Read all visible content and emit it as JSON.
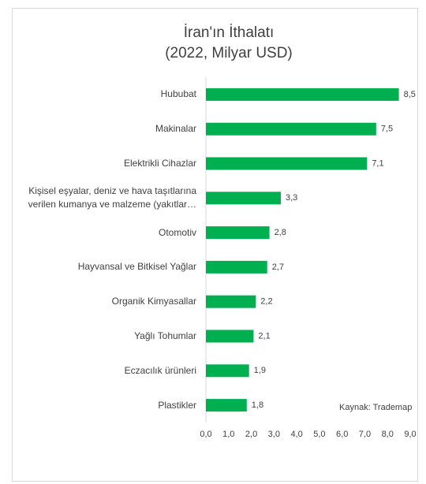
{
  "chart_data": {
    "type": "bar",
    "orientation": "horizontal",
    "title": "İran'ın İthalatı",
    "subtitle": "(2022, Milyar USD)",
    "categories": [
      "Hububat",
      "Makinalar",
      "Elektrikli Cihazlar",
      "Kişisel eşyalar, deniz ve hava taşıtlarına\nverilen kumanya ve malzeme (yakıtlar…",
      "Otomotiv",
      "Hayvansal ve Bitkisel Yağlar",
      "Organik Kimyasallar",
      "Yağlı Tohumlar",
      "Eczacılık ürünleri",
      "Plastikler"
    ],
    "values": [
      8.5,
      7.5,
      7.1,
      3.3,
      2.8,
      2.7,
      2.2,
      2.1,
      1.9,
      1.8
    ],
    "value_labels": [
      "8,5",
      "7,5",
      "7,1",
      "3,3",
      "2,8",
      "2,7",
      "2,2",
      "2,1",
      "1,9",
      "1,8"
    ],
    "color": "#00b050",
    "xlim": [
      0,
      9
    ],
    "xticks": [
      {
        "value": 0,
        "label": "0,0"
      },
      {
        "value": 1,
        "label": "1,0"
      },
      {
        "value": 2,
        "label": "2,0"
      },
      {
        "value": 3,
        "label": "3,0"
      },
      {
        "value": 4,
        "label": "4,0"
      },
      {
        "value": 5,
        "label": "5,0"
      },
      {
        "value": 6,
        "label": "6,0"
      },
      {
        "value": 7,
        "label": "7,0"
      },
      {
        "value": 8,
        "label": "8,0"
      },
      {
        "value": 9,
        "label": "9,0"
      }
    ],
    "annotation": "Kaynak: Trademap"
  }
}
